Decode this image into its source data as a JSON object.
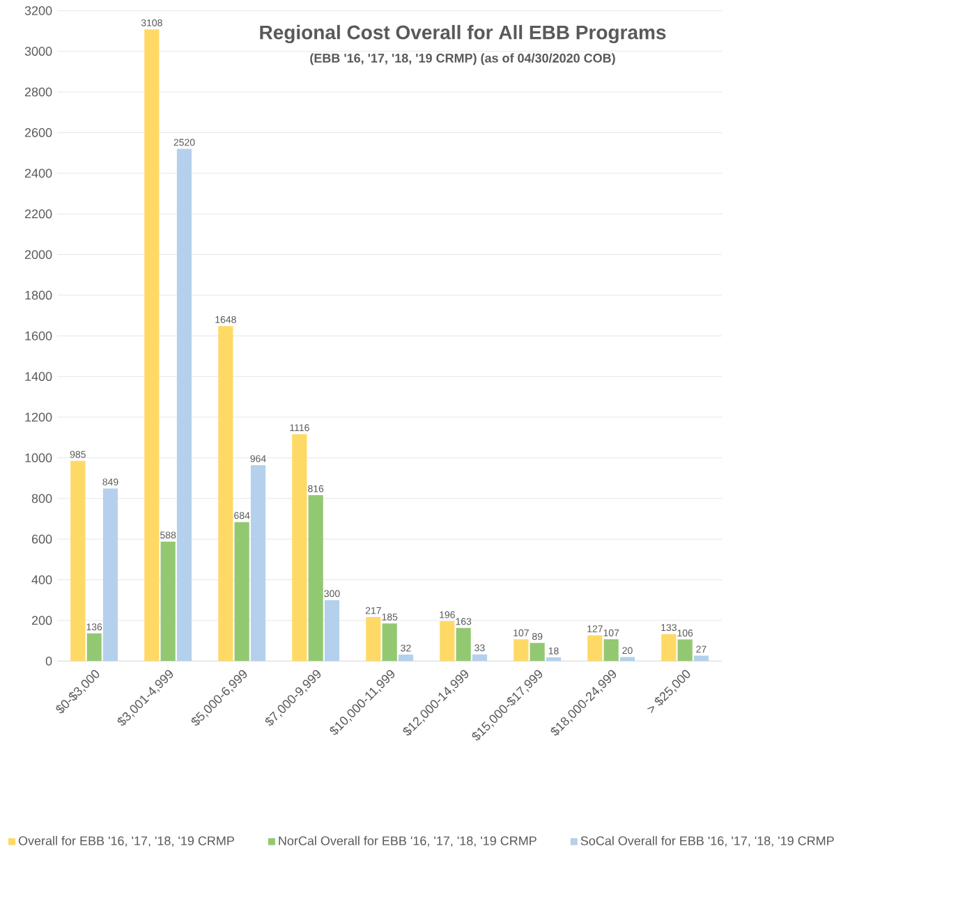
{
  "chart_data": {
    "type": "bar",
    "title": "Regional Cost Overall for All EBB Programs",
    "subtitle": "(EBB '16, '17, '18, '19 CRMP)  (as of 04/30/2020 COB)",
    "categories": [
      "$0-$3,000",
      "$3,001-4,999",
      "$5,000-6,999",
      "$7,000-9,999",
      "$10,000-11,999",
      "$12,000-14,999",
      "$15,000-$17,999",
      "$18,000-24,999",
      "> $25,000"
    ],
    "series": [
      {
        "name": "Overall for EBB '16, '17, '18, '19 CRMP",
        "color": "#ffd966",
        "values": [
          985,
          3108,
          1648,
          1116,
          217,
          196,
          107,
          127,
          133
        ]
      },
      {
        "name": "NorCal Overall for EBB '16, '17, '18, '19 CRMP",
        "color": "#93c872",
        "values": [
          136,
          588,
          684,
          816,
          185,
          163,
          89,
          107,
          106
        ]
      },
      {
        "name": "SoCal Overall for EBB '16, '17, '18, '19 CRMP",
        "color": "#b4d0ec",
        "values": [
          849,
          2520,
          964,
          300,
          32,
          33,
          18,
          20,
          27
        ]
      }
    ],
    "ylim": [
      0,
      3200
    ],
    "yticks": [
      0,
      200,
      400,
      600,
      800,
      1000,
      1200,
      1400,
      1600,
      1800,
      2000,
      2200,
      2400,
      2600,
      2800,
      3000,
      3200
    ],
    "grid": "y",
    "legend": "bottom",
    "data_labels": true
  }
}
